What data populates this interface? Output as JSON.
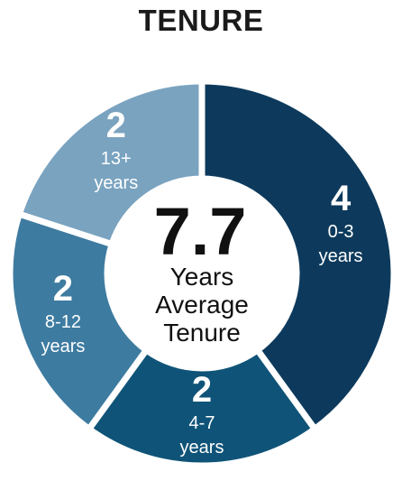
{
  "chart_data": {
    "type": "pie",
    "title": "TENURE",
    "center": {
      "value": "7.7",
      "lines": [
        "Years",
        "Average",
        "Tenure"
      ]
    },
    "slices": [
      {
        "value": 4,
        "label_lines": [
          "0-3",
          "years"
        ],
        "color": "#0d3a5c"
      },
      {
        "value": 2,
        "label_lines": [
          "4-7",
          "years"
        ],
        "color": "#0f5478"
      },
      {
        "value": 2,
        "label_lines": [
          "8-12",
          "years"
        ],
        "color": "#3e7ba0"
      },
      {
        "value": 2,
        "label_lines": [
          "13+",
          "years"
        ],
        "color": "#7aa3c0"
      }
    ]
  }
}
